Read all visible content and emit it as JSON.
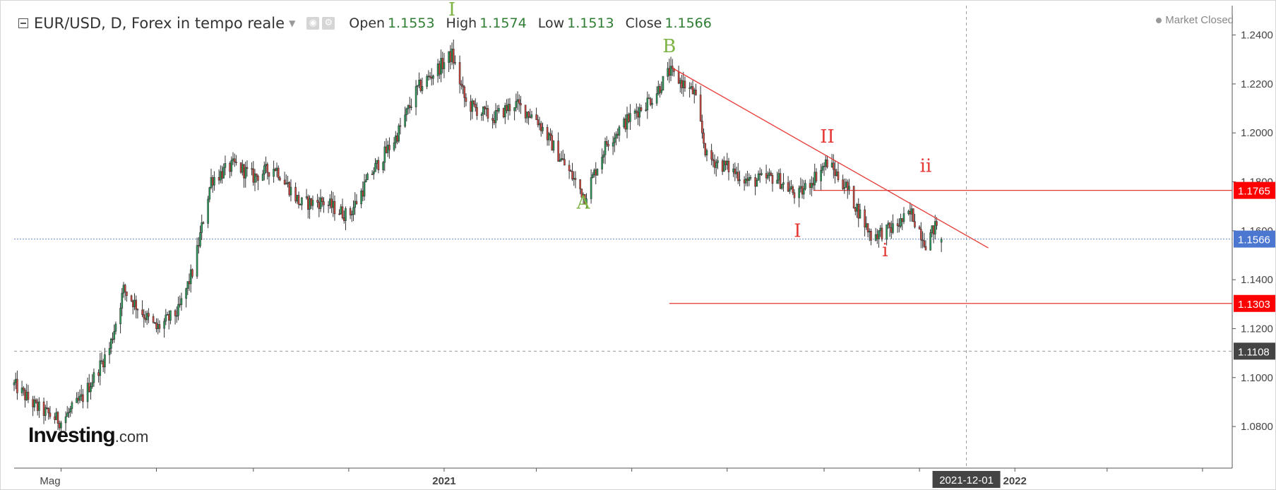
{
  "header": {
    "symbol": "EUR/USD, D, Forex in tempo reale",
    "open_label": "Open",
    "open_value": "1.1553",
    "high_label": "High",
    "high_value": "1.1574",
    "low_label": "Low",
    "low_value": "1.1513",
    "close_label": "Close",
    "close_value": "1.1566"
  },
  "status": "Market Closed",
  "logo": {
    "main": "Investing",
    "domain": ".com"
  },
  "colors": {
    "up": "#26a65b",
    "down": "#e0443c",
    "wave_green": "#7cb342",
    "wave_red": "#e53935",
    "price_line": "#6b8cce"
  },
  "chart_data": {
    "type": "candlestick",
    "instrument": "EUR/USD",
    "timeframe": "D",
    "x_tick_labels": [
      "Mag",
      "2021",
      "2021-12-01",
      "2022"
    ],
    "y_ticks": [
      1.08,
      1.1,
      1.12,
      1.14,
      1.16,
      1.18,
      1.2,
      1.22,
      1.24
    ],
    "y_tick_labels": [
      "1.0800",
      "1.1000",
      "1.1200",
      "1.1400",
      "1.1600",
      "1.1800",
      "1.2000",
      "1.2200",
      "1.2400"
    ],
    "ylim": [
      1.063,
      1.252
    ],
    "close_path": [
      [
        "2020-04-01",
        1.097
      ],
      [
        "2020-04-15",
        1.088
      ],
      [
        "2020-05-01",
        1.082
      ],
      [
        "2020-05-15",
        1.092
      ],
      [
        "2020-06-01",
        1.112
      ],
      [
        "2020-06-10",
        1.136
      ],
      [
        "2020-06-20",
        1.128
      ],
      [
        "2020-07-01",
        1.12
      ],
      [
        "2020-07-15",
        1.127
      ],
      [
        "2020-07-25",
        1.145
      ],
      [
        "2020-08-05",
        1.181
      ],
      [
        "2020-08-20",
        1.187
      ],
      [
        "2020-09-01",
        1.182
      ],
      [
        "2020-09-15",
        1.186
      ],
      [
        "2020-10-01",
        1.171
      ],
      [
        "2020-10-15",
        1.172
      ],
      [
        "2020-11-01",
        1.166
      ],
      [
        "2020-11-15",
        1.183
      ],
      [
        "2020-12-01",
        1.198
      ],
      [
        "2020-12-15",
        1.218
      ],
      [
        "2021-01-06",
        1.232
      ],
      [
        "2021-01-15",
        1.212
      ],
      [
        "2021-02-01",
        1.206
      ],
      [
        "2021-02-15",
        1.212
      ],
      [
        "2021-03-01",
        1.206
      ],
      [
        "2021-03-15",
        1.191
      ],
      [
        "2021-04-01",
        1.174
      ],
      [
        "2021-04-15",
        1.196
      ],
      [
        "2021-05-01",
        1.207
      ],
      [
        "2021-05-15",
        1.215
      ],
      [
        "2021-05-25",
        1.225
      ],
      [
        "2021-06-10",
        1.216
      ],
      [
        "2021-06-18",
        1.19
      ],
      [
        "2021-07-01",
        1.186
      ],
      [
        "2021-07-15",
        1.18
      ],
      [
        "2021-08-01",
        1.182
      ],
      [
        "2021-08-15",
        1.174
      ],
      [
        "2021-09-03",
        1.188
      ],
      [
        "2021-09-15",
        1.178
      ],
      [
        "2021-10-01",
        1.158
      ],
      [
        "2021-10-15",
        1.161
      ],
      [
        "2021-10-27",
        1.167
      ],
      [
        "2021-11-05",
        1.155
      ],
      [
        "2021-11-15",
        1.166
      ]
    ],
    "last_candle": {
      "open": 1.1553,
      "high": 1.1574,
      "low": 1.1513,
      "close": 1.1566
    },
    "price_labels": [
      {
        "text": "1.1765",
        "value": 1.1765,
        "bg": "#ff0000"
      },
      {
        "text": "1.1566",
        "value": 1.1566,
        "bg": "#4b77d1"
      },
      {
        "text": "1.1303",
        "value": 1.1303,
        "bg": "#ff0000"
      },
      {
        "text": "1.1108",
        "value": 1.1108,
        "bg": "#444444"
      }
    ],
    "horizontal_lines": [
      {
        "value": 1.1765,
        "from": "2021-08-25",
        "color": "#e53935"
      },
      {
        "value": 1.1303,
        "from": "2021-05-25",
        "color": "#e53935"
      }
    ],
    "trendline": {
      "from": [
        "2021-05-27",
        1.2265
      ],
      "to": [
        "2021-12-15",
        1.153
      ],
      "color": "#e53935"
    },
    "wave_labels": [
      {
        "text": "I",
        "date": "2021-01-06",
        "value": 1.248,
        "color": "#7cb342"
      },
      {
        "text": "B",
        "date": "2021-05-25",
        "value": 1.233,
        "color": "#7cb342"
      },
      {
        "text": "A",
        "date": "2021-03-31",
        "value": 1.169,
        "color": "#7cb342"
      },
      {
        "text": "II",
        "date": "2021-09-03",
        "value": 1.196,
        "color": "#e53935"
      },
      {
        "text": "ii",
        "date": "2021-11-05",
        "value": 1.184,
        "color": "#e53935"
      },
      {
        "text": "I",
        "date": "2021-08-15",
        "value": 1.1575,
        "color": "#e53935"
      },
      {
        "text": "i",
        "date": "2021-10-10",
        "value": 1.1495,
        "color": "#e53935"
      }
    ],
    "crosshair": {
      "date": "2021-12-01",
      "value": 1.1108
    },
    "grid": false
  }
}
